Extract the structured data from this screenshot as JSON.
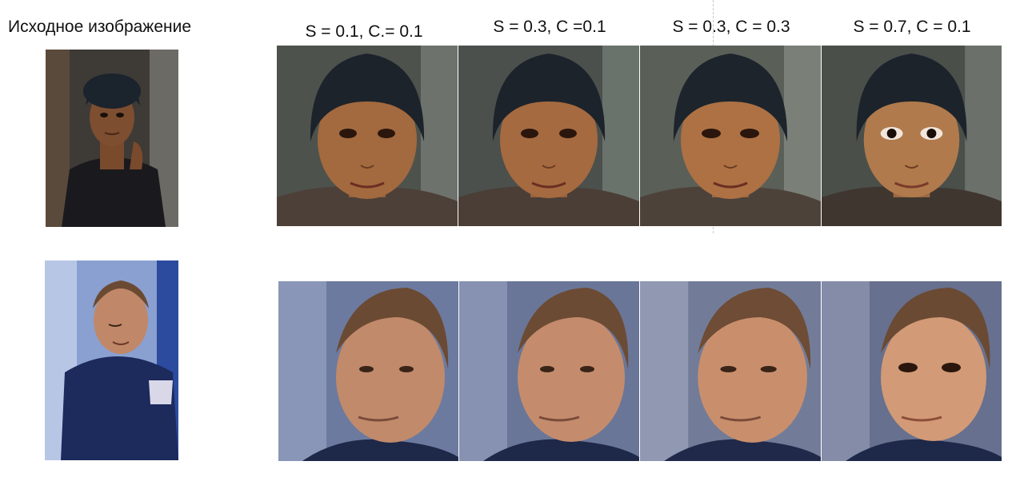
{
  "source_title": "Исходное изображение",
  "columns": [
    {
      "label": "S = 0.1, C.= 0.1"
    },
    {
      "label": "S = 0.3, C =0.1"
    },
    {
      "label": "S = 0.3, C = 0.3"
    },
    {
      "label": "S = 0.7, C = 0.1"
    }
  ],
  "rows": [
    {
      "subject": "woman-in-knit-hat",
      "skin": "#a0683f",
      "hair": "#1c232b",
      "bg": "#4a4f4a",
      "cloth": "#4a3f3a"
    },
    {
      "subject": "man-in-sports-jacket",
      "skin": "#c08868",
      "hair": "#6b4a33",
      "bg": "#5d6e96",
      "cloth": "#1f2a4a"
    }
  ],
  "colors": {
    "text": "#111111",
    "background": "#ffffff"
  }
}
